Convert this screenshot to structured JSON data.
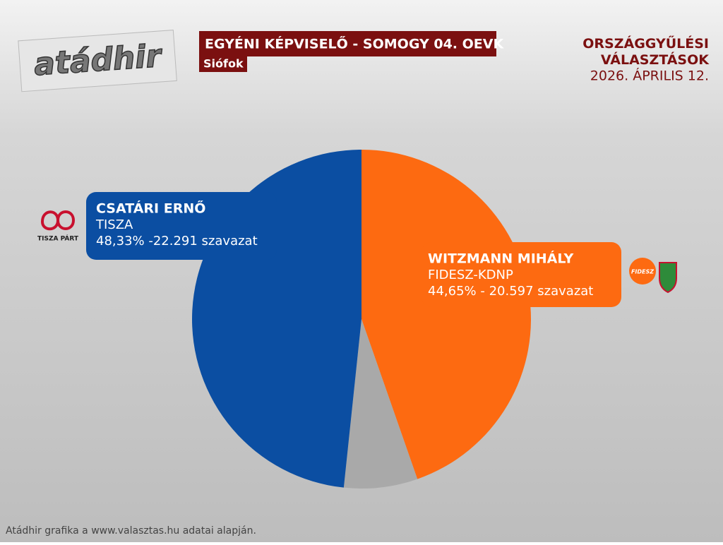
{
  "header": {
    "logo": "atádhir",
    "election": "ORSZÁGGYŰLÉSI\nVÁLASZTÁSOK",
    "date": "2026. ÁPRILIS 12."
  },
  "logos": {
    "tisza": "TISZA PÁRT",
    "fidesz": "FIDESZ"
  },
  "footer": "Atádhir grafika a www.valasztas.hu adatai alapján.",
  "chart_data": {
    "type": "pie",
    "title": "EGYÉNI KÉPVISELŐ - SOMOGY 04. OEVK",
    "subtitle": "Siófok",
    "categories": [
      "CSATÁRI ERNŐ",
      "WITZMANN MIHÁLY",
      null
    ],
    "parties": [
      "TISZA",
      "FIDESZ-KDNP",
      null
    ],
    "values": [
      48.33,
      44.65,
      7.02
    ],
    "value_labels": [
      "48,33% -22.291 szavazat",
      "44,65% - 20.597 szavazat",
      null
    ],
    "colors": [
      "#0b4ea2",
      "#fd6a11",
      "#a9a9a9"
    ]
  }
}
